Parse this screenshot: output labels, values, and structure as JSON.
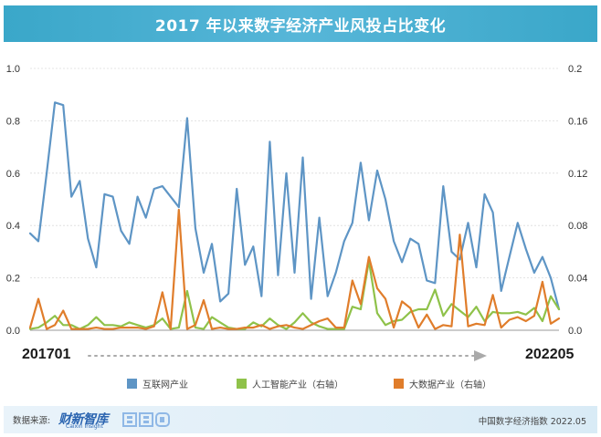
{
  "title": "2017 年以来数字经济产业风投占比变化",
  "x_start_label": "201701",
  "x_end_label": "202205",
  "footer": {
    "source_label": "数据来源:",
    "logo_main": "财新智库",
    "logo_sub": "Caixin Insight",
    "logo_bbd": "BBD",
    "report": "中国数字经济指数 2022.05"
  },
  "colors": {
    "title_bg": "#3aa7c9",
    "internet": "#5e95c5",
    "ai": "#8fc24a",
    "bigdata": "#e07d2b",
    "footer_bg": "#e2f0f8"
  },
  "chart_data": {
    "type": "line",
    "x_range": [
      "201701",
      "202205"
    ],
    "y_left": {
      "ticks": [
        "0.0",
        "0.2",
        "0.4",
        "0.6",
        "0.8",
        "1.0"
      ],
      "range": [
        0,
        1.0
      ]
    },
    "y_right": {
      "ticks": [
        "0.0",
        "0.04",
        "0.08",
        "0.12",
        "0.16",
        "0.2"
      ],
      "range": [
        0,
        0.2
      ]
    },
    "grid": true,
    "legend_position": "bottom",
    "series": [
      {
        "name": "互联网产业",
        "axis": "left",
        "values": [
          0.37,
          0.34,
          0.6,
          0.87,
          0.86,
          0.51,
          0.57,
          0.35,
          0.24,
          0.52,
          0.51,
          0.38,
          0.33,
          0.51,
          0.43,
          0.54,
          0.55,
          0.51,
          0.47,
          0.81,
          0.39,
          0.22,
          0.33,
          0.11,
          0.14,
          0.54,
          0.25,
          0.32,
          0.13,
          0.72,
          0.21,
          0.6,
          0.22,
          0.66,
          0.12,
          0.43,
          0.13,
          0.22,
          0.34,
          0.41,
          0.64,
          0.42,
          0.61,
          0.5,
          0.34,
          0.26,
          0.35,
          0.33,
          0.19,
          0.18,
          0.55,
          0.3,
          0.27,
          0.41,
          0.24,
          0.52,
          0.45,
          0.15,
          0.28,
          0.41,
          0.31,
          0.22,
          0.28,
          0.2,
          0.08
        ]
      },
      {
        "name": "人工智能产业（右轴）",
        "axis": "right",
        "values": [
          0.001,
          0.002,
          0.006,
          0.011,
          0.004,
          0.004,
          0.001,
          0.004,
          0.01,
          0.004,
          0.004,
          0.003,
          0.006,
          0.004,
          0.002,
          0.004,
          0.009,
          0.001,
          0.002,
          0.03,
          0.002,
          0.001,
          0.01,
          0.006,
          0.002,
          0.001,
          0.001,
          0.006,
          0.003,
          0.009,
          0.004,
          0.001,
          0.006,
          0.013,
          0.006,
          0.003,
          0.001,
          0.001,
          0.001,
          0.018,
          0.016,
          0.053,
          0.013,
          0.004,
          0.007,
          0.008,
          0.014,
          0.016,
          0.016,
          0.031,
          0.011,
          0.02,
          0.015,
          0.01,
          0.018,
          0.007,
          0.014,
          0.013,
          0.013,
          0.014,
          0.012,
          0.017,
          0.007,
          0.026,
          0.016
        ]
      },
      {
        "name": "大数据产业（右轴）",
        "axis": "right",
        "values": [
          0.002,
          0.024,
          0.001,
          0.004,
          0.015,
          0.001,
          0.001,
          0.001,
          0.002,
          0.001,
          0.001,
          0.002,
          0.002,
          0.002,
          0.001,
          0.003,
          0.029,
          0.001,
          0.092,
          0.001,
          0.004,
          0.023,
          0.001,
          0.002,
          0.001,
          0.001,
          0.002,
          0.002,
          0.004,
          0.001,
          0.003,
          0.004,
          0.002,
          0.001,
          0.004,
          0.007,
          0.009,
          0.002,
          0.002,
          0.038,
          0.02,
          0.056,
          0.032,
          0.024,
          0.002,
          0.022,
          0.017,
          0.002,
          0.012,
          0.001,
          0.004,
          0.003,
          0.073,
          0.003,
          0.005,
          0.004,
          0.027,
          0.002,
          0.008,
          0.01,
          0.007,
          0.011,
          0.037,
          0.005,
          0.009
        ]
      }
    ]
  }
}
